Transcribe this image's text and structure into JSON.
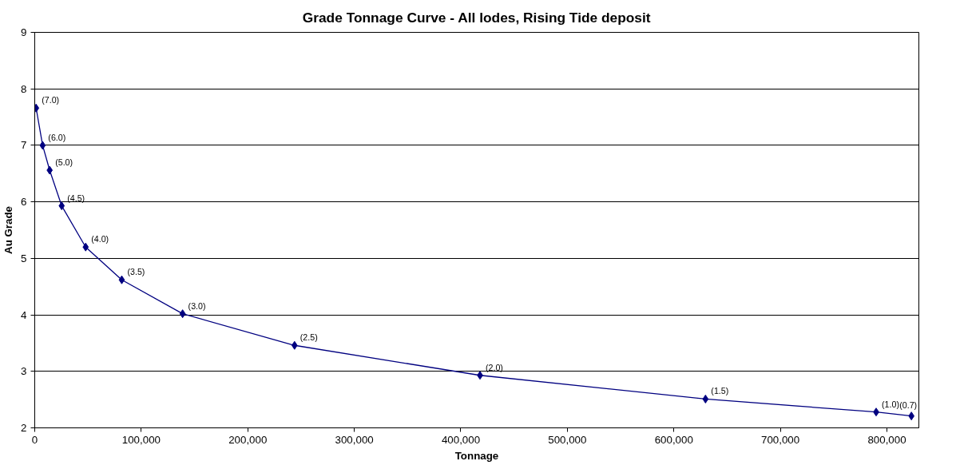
{
  "chart_data": {
    "type": "line",
    "title": "Grade Tonnage Curve - All lodes, Rising Tide deposit",
    "xlabel": "Tonnage",
    "ylabel": "Au Grade",
    "x": [
      1300,
      7400,
      14000,
      25300,
      47800,
      81700,
      138800,
      243900,
      418000,
      629700,
      789900,
      823000
    ],
    "series": [
      {
        "color": "#000080",
        "values": [
          7.66,
          7.0,
          6.56,
          5.93,
          5.2,
          4.62,
          4.02,
          3.46,
          2.93,
          2.51,
          2.28,
          2.21
        ]
      }
    ],
    "xlim": [
      0,
      830000
    ],
    "xticks": [
      {
        "value": 0,
        "label": "0"
      },
      {
        "value": 100000,
        "label": "100,000"
      },
      {
        "value": 200000,
        "label": "200,000"
      },
      {
        "value": 300000,
        "label": "300,000"
      },
      {
        "value": 400000,
        "label": "400,000"
      },
      {
        "value": 500000,
        "label": "500,000"
      },
      {
        "value": 600000,
        "label": "600,000"
      },
      {
        "value": 700000,
        "label": "700,000"
      },
      {
        "value": 800000,
        "label": "800,000"
      }
    ],
    "ylim": [
      2,
      9
    ],
    "yticks": [
      2,
      3,
      4,
      5,
      6,
      7,
      8,
      9
    ],
    "grid": "y",
    "marker": "diamond",
    "line_style": "solid",
    "annotations": [
      {
        "text": "(7.0)",
        "x": 1300,
        "y": 7.66
      },
      {
        "text": "(6.0)",
        "x": 7400,
        "y": 7.0
      },
      {
        "text": "(5.0)",
        "x": 14000,
        "y": 6.56
      },
      {
        "text": "(4.5)",
        "x": 25300,
        "y": 5.93
      },
      {
        "text": "(4.0)",
        "x": 47800,
        "y": 5.2
      },
      {
        "text": "(3.5)",
        "x": 81700,
        "y": 4.62
      },
      {
        "text": "(3.0)",
        "x": 138800,
        "y": 4.02
      },
      {
        "text": "(2.5)",
        "x": 243900,
        "y": 3.46
      },
      {
        "text": "(2.0)",
        "x": 418000,
        "y": 2.93
      },
      {
        "text": "(1.5)",
        "x": 629700,
        "y": 2.51
      },
      {
        "text": "(1.0)",
        "x": 789900,
        "y": 2.28
      },
      {
        "text": "(0.7)",
        "x": 823000,
        "y": 2.21
      }
    ]
  }
}
